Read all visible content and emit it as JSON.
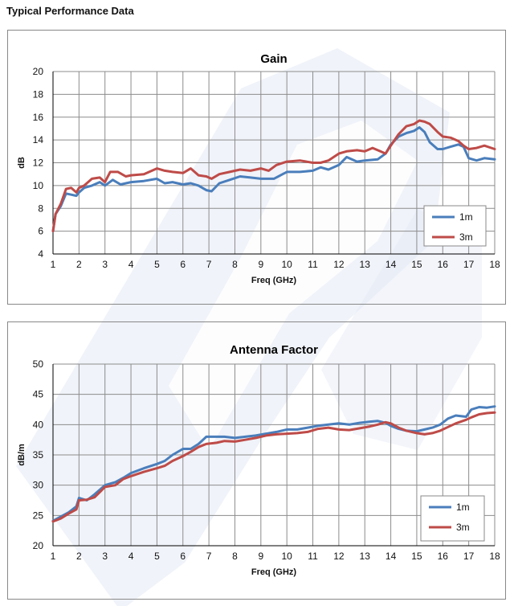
{
  "page": {
    "title": "Typical Performance Data"
  },
  "watermark": {
    "letters": "PE",
    "color": "#dfe6f3"
  },
  "colors": {
    "series_1m": "#4a7ebb",
    "series_3m": "#be4b48",
    "grid": "#8c8c8c",
    "axis": "#000000"
  },
  "chart_data": [
    {
      "type": "line",
      "title": "Gain",
      "xlabel": "Freq (GHz)",
      "ylabel": "dB",
      "xlim": [
        1,
        18
      ],
      "ylim": [
        4,
        20
      ],
      "xticks": [
        1,
        2,
        3,
        4,
        5,
        6,
        7,
        8,
        9,
        10,
        11,
        12,
        13,
        14,
        15,
        16,
        17,
        18
      ],
      "yticks": [
        4,
        6,
        8,
        10,
        12,
        14,
        16,
        18,
        20
      ],
      "grid": true,
      "legend": "bottom-right",
      "series": [
        {
          "name": "1m",
          "x": [
            1,
            1.1,
            1.3,
            1.5,
            1.7,
            1.9,
            2,
            2.2,
            2.5,
            2.8,
            3,
            3.3,
            3.6,
            4,
            4.5,
            5,
            5.3,
            5.6,
            6,
            6.3,
            6.6,
            6.9,
            7.1,
            7.4,
            7.8,
            8.2,
            8.6,
            9,
            9.5,
            10,
            10.5,
            11,
            11.3,
            11.6,
            12,
            12.3,
            12.7,
            13,
            13.5,
            13.8,
            14,
            14.3,
            14.6,
            14.9,
            15.1,
            15.3,
            15.5,
            15.8,
            16,
            16.3,
            16.6,
            16.8,
            17,
            17.3,
            17.6,
            18
          ],
          "y": [
            6,
            7.5,
            8.2,
            9.3,
            9.2,
            9.1,
            9.4,
            9.8,
            10,
            10.3,
            10,
            10.5,
            10.1,
            10.3,
            10.4,
            10.6,
            10.2,
            10.3,
            10.1,
            10.2,
            10,
            9.6,
            9.5,
            10.2,
            10.5,
            10.8,
            10.7,
            10.6,
            10.6,
            11.2,
            11.2,
            11.3,
            11.6,
            11.4,
            11.8,
            12.5,
            12.1,
            12.2,
            12.3,
            12.8,
            13.6,
            14.3,
            14.6,
            14.8,
            15.1,
            14.7,
            13.8,
            13.2,
            13.2,
            13.4,
            13.6,
            13.4,
            12.4,
            12.2,
            12.4,
            12.3
          ]
        },
        {
          "name": "3m",
          "x": [
            1,
            1.1,
            1.3,
            1.5,
            1.7,
            1.9,
            2,
            2.2,
            2.5,
            2.8,
            3,
            3.2,
            3.5,
            3.8,
            4,
            4.5,
            5,
            5.3,
            5.6,
            6,
            6.3,
            6.6,
            6.9,
            7.1,
            7.4,
            7.8,
            8.2,
            8.6,
            9,
            9.3,
            9.6,
            10,
            10.5,
            11,
            11.3,
            11.6,
            12,
            12.3,
            12.7,
            13,
            13.3,
            13.6,
            13.8,
            14,
            14.3,
            14.6,
            14.9,
            15.1,
            15.3,
            15.5,
            15.8,
            16,
            16.3,
            16.6,
            16.8,
            17,
            17.3,
            17.6,
            18
          ],
          "y": [
            6,
            7.5,
            8.4,
            9.7,
            9.8,
            9.4,
            9.8,
            10,
            10.6,
            10.7,
            10.3,
            11.2,
            11.2,
            10.8,
            10.9,
            11,
            11.5,
            11.3,
            11.2,
            11.1,
            11.5,
            10.9,
            10.8,
            10.6,
            11,
            11.2,
            11.4,
            11.3,
            11.5,
            11.3,
            11.8,
            12.1,
            12.2,
            12,
            12,
            12.2,
            12.8,
            13,
            13.1,
            13,
            13.3,
            13,
            12.8,
            13.5,
            14.5,
            15.2,
            15.4,
            15.7,
            15.6,
            15.4,
            14.7,
            14.3,
            14.2,
            13.9,
            13.5,
            13.2,
            13.3,
            13.5,
            13.2
          ]
        }
      ]
    },
    {
      "type": "line",
      "title": "Antenna Factor",
      "xlabel": "Freq (GHz)",
      "ylabel": "dB/m",
      "xlim": [
        1,
        18
      ],
      "ylim": [
        20,
        50
      ],
      "xticks": [
        1,
        2,
        3,
        4,
        5,
        6,
        7,
        8,
        9,
        10,
        11,
        12,
        13,
        14,
        15,
        16,
        17,
        18
      ],
      "yticks": [
        20,
        25,
        30,
        35,
        40,
        45,
        50
      ],
      "grid": true,
      "legend": "bottom-right",
      "series": [
        {
          "name": "1m",
          "x": [
            1,
            1.3,
            1.6,
            1.9,
            2,
            2.3,
            2.6,
            3,
            3.4,
            3.7,
            4,
            4.5,
            5,
            5.3,
            5.6,
            6,
            6.3,
            6.6,
            6.9,
            7.3,
            7.6,
            8,
            8.4,
            8.8,
            9.2,
            9.6,
            10,
            10.4,
            10.8,
            11.2,
            11.6,
            12,
            12.4,
            12.8,
            13.2,
            13.5,
            13.8,
            14,
            14.3,
            14.6,
            15,
            15.3,
            15.6,
            15.9,
            16.2,
            16.5,
            16.9,
            17.1,
            17.4,
            17.7,
            18
          ],
          "y": [
            24.1,
            24.8,
            25.5,
            26.5,
            27.9,
            27.5,
            28.5,
            30,
            30.5,
            31.2,
            32,
            32.8,
            33.5,
            34,
            35,
            36,
            36,
            36.8,
            38,
            38,
            38,
            37.8,
            38,
            38.2,
            38.5,
            38.8,
            39.2,
            39.2,
            39.5,
            39.8,
            40,
            40.2,
            40,
            40.3,
            40.5,
            40.6,
            40.3,
            39.8,
            39.3,
            39,
            38.9,
            39.2,
            39.5,
            40,
            41,
            41.5,
            41.3,
            42.5,
            42.9,
            42.8,
            43
          ]
        },
        {
          "name": "3m",
          "x": [
            1,
            1.3,
            1.6,
            1.9,
            2,
            2.3,
            2.6,
            3,
            3.4,
            3.7,
            4,
            4.5,
            5,
            5.3,
            5.6,
            6,
            6.3,
            6.6,
            6.9,
            7.3,
            7.6,
            8,
            8.4,
            8.8,
            9.2,
            9.6,
            10,
            10.4,
            10.8,
            11.2,
            11.6,
            12,
            12.4,
            12.8,
            13.2,
            13.5,
            13.8,
            14,
            14.3,
            14.6,
            15,
            15.3,
            15.6,
            15.9,
            16.2,
            16.5,
            16.9,
            17.1,
            17.4,
            17.7,
            18
          ],
          "y": [
            24,
            24.5,
            25.3,
            26,
            27.5,
            27.6,
            28,
            29.7,
            30,
            31,
            31.5,
            32.2,
            32.8,
            33.2,
            34,
            34.8,
            35.5,
            36.3,
            36.8,
            37,
            37.3,
            37.2,
            37.5,
            37.8,
            38.2,
            38.4,
            38.5,
            38.6,
            38.8,
            39.3,
            39.5,
            39.2,
            39.1,
            39.4,
            39.7,
            40,
            40.4,
            40.2,
            39.5,
            39,
            38.6,
            38.4,
            38.6,
            39,
            39.6,
            40.2,
            40.8,
            41.2,
            41.7,
            41.9,
            42
          ]
        }
      ]
    }
  ]
}
